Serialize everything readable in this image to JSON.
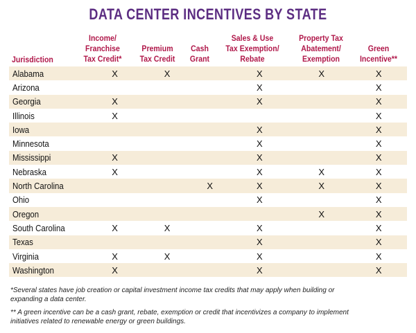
{
  "title": "DATA CENTER INCENTIVES BY STATE",
  "columns": {
    "jurisdiction": "Jurisdiction",
    "income": [
      "Income/",
      "Franchise",
      "Tax Credit*"
    ],
    "premium": [
      "Premium",
      "Tax Credit"
    ],
    "cash": [
      "Cash",
      "Grant"
    ],
    "sales": [
      "Sales & Use",
      "Tax Exemption/",
      "Rebate"
    ],
    "property": [
      "Property Tax",
      "Abatement/",
      "Exemption"
    ],
    "green": [
      "Green",
      "Incentive**"
    ]
  },
  "rows": [
    {
      "state": "Alabama",
      "cells": [
        "X",
        "X",
        "",
        "X",
        "X",
        "X"
      ]
    },
    {
      "state": "Arizona",
      "cells": [
        "",
        "",
        "",
        "X",
        "",
        "X"
      ]
    },
    {
      "state": "Georgia",
      "cells": [
        "X",
        "",
        "",
        "X",
        "",
        "X"
      ]
    },
    {
      "state": "Illinois",
      "cells": [
        "X",
        "",
        "",
        "",
        "",
        "X"
      ]
    },
    {
      "state": "Iowa",
      "cells": [
        "",
        "",
        "",
        "X",
        "",
        "X"
      ]
    },
    {
      "state": "Minnesota",
      "cells": [
        "",
        "",
        "",
        "X",
        "",
        "X"
      ]
    },
    {
      "state": "Mississippi",
      "cells": [
        "X",
        "",
        "",
        "X",
        "",
        "X"
      ]
    },
    {
      "state": "Nebraska",
      "cells": [
        "X",
        "",
        "",
        "X",
        "X",
        "X"
      ]
    },
    {
      "state": "North Carolina",
      "cells": [
        "",
        "",
        "X",
        "X",
        "X",
        "X"
      ]
    },
    {
      "state": "Ohio",
      "cells": [
        "",
        "",
        "",
        "X",
        "",
        "X"
      ]
    },
    {
      "state": "Oregon",
      "cells": [
        "",
        "",
        "",
        "",
        "X",
        "X"
      ]
    },
    {
      "state": "South Carolina",
      "cells": [
        "X",
        "X",
        "",
        "X",
        "",
        "X"
      ]
    },
    {
      "state": "Texas",
      "cells": [
        "",
        "",
        "",
        "X",
        "",
        "X"
      ]
    },
    {
      "state": "Virginia",
      "cells": [
        "X",
        "X",
        "",
        "X",
        "",
        "X"
      ]
    },
    {
      "state": "Washington",
      "cells": [
        "X",
        "",
        "",
        "X",
        "",
        "X"
      ]
    }
  ],
  "footnotes": [
    "*Several states have job creation or capital investment income tax credits that may apply when building or",
    "expanding a data center.",
    "** A green incentive can be a cash grant, rebate, exemption or credit that incentivizes a company to implement",
    "initiatives related to renewable energy or green buildings."
  ],
  "colors": {
    "title": "#5c2d82",
    "header": "#b0184a",
    "shade": "#f6ecd9"
  }
}
